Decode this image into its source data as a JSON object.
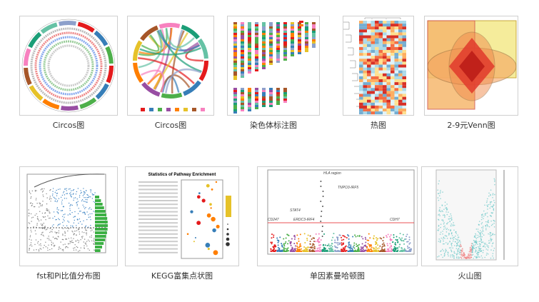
{
  "gallery": {
    "items": [
      {
        "caption": "Circos图"
      },
      {
        "caption": "Circos图"
      },
      {
        "caption": "染色体标注图"
      },
      {
        "caption": "热图"
      },
      {
        "caption": "2-9元Venn图"
      },
      {
        "caption": "fst和Pi比值分布图"
      },
      {
        "caption": "KEGG富集点状图",
        "title": "Statistics of Pathway Enrichment"
      },
      {
        "caption": "单因素曼哈顿图",
        "labels": [
          "HLA region",
          "TNPO3-IRF5",
          "STAT4",
          "CD247",
          "ERDC3-IRF4",
          "CDH7"
        ]
      },
      {
        "caption": "火山图"
      }
    ]
  }
}
